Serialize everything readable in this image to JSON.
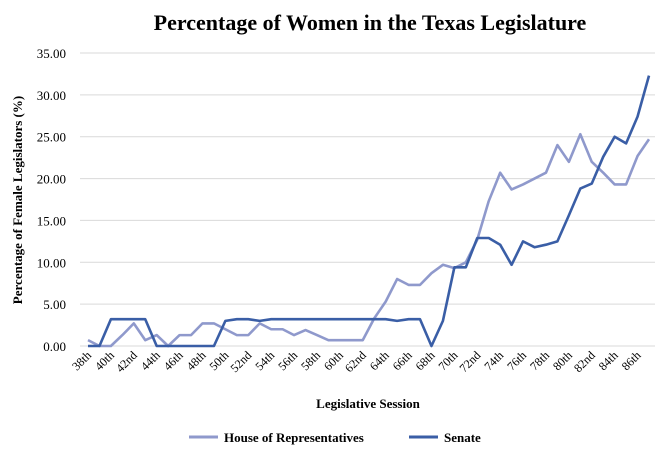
{
  "chart_data": {
    "type": "line",
    "title": "Percentage of Women in the Texas Legislature",
    "xlabel": "Legislative Session",
    "ylabel": "Percentage of Female Legislators (%)",
    "ylim": [
      0,
      35
    ],
    "yticks": [
      "0.00",
      "5.00",
      "10.00",
      "15.00",
      "20.00",
      "25.00",
      "30.00",
      "35.00"
    ],
    "grid": true,
    "legend_position": "bottom",
    "categories": [
      "38th",
      "39th",
      "40th",
      "41st",
      "42nd",
      "43rd",
      "44th",
      "45th",
      "46th",
      "47th",
      "48th",
      "49th",
      "50th",
      "51st",
      "52nd",
      "53rd",
      "54th",
      "55th",
      "56th",
      "57th",
      "58th",
      "59th",
      "60th",
      "61st",
      "62nd",
      "63rd",
      "64th",
      "65th",
      "66th",
      "67th",
      "68th",
      "69th",
      "70th",
      "71st",
      "72nd",
      "73rd",
      "74th",
      "75th",
      "76th",
      "77th",
      "78th",
      "79th",
      "80th",
      "81st",
      "82nd",
      "83rd",
      "84th",
      "85th",
      "86th",
      "87th"
    ],
    "xtick_labels": [
      "38th",
      "40th",
      "42nd",
      "44th",
      "46th",
      "48th",
      "50th",
      "52nd",
      "54th",
      "56th",
      "58th",
      "60th",
      "62nd",
      "64th",
      "66th",
      "68th",
      "70th",
      "72nd",
      "74th",
      "76th",
      "78th",
      "80th",
      "82nd",
      "84th",
      "86th"
    ],
    "series": [
      {
        "name": "House of Representatives",
        "color": "#8f99cc",
        "values": [
          0.7,
          0,
          0,
          1.3,
          2.7,
          0.7,
          1.3,
          0,
          1.3,
          1.3,
          2.7,
          2.7,
          2.0,
          1.3,
          1.3,
          2.7,
          2.0,
          2.0,
          1.3,
          1.9,
          1.3,
          0.7,
          0.7,
          0.7,
          0.7,
          3.3,
          5.3,
          8.0,
          7.3,
          7.3,
          8.7,
          9.7,
          9.3,
          10.0,
          12.7,
          17.3,
          20.7,
          18.7,
          19.3,
          20.0,
          20.7,
          24.0,
          22.0,
          25.3,
          22.0,
          20.7,
          19.3,
          19.3,
          22.7,
          24.7
        ]
      },
      {
        "name": "Senate",
        "color": "#3a5ea6",
        "values": [
          0,
          0,
          3.2,
          3.2,
          3.2,
          3.2,
          0,
          0,
          0,
          0,
          0,
          0,
          3.0,
          3.2,
          3.2,
          3.0,
          3.2,
          3.2,
          3.2,
          3.2,
          3.2,
          3.2,
          3.2,
          3.2,
          3.2,
          3.2,
          3.2,
          3.0,
          3.2,
          3.2,
          0,
          3.0,
          9.4,
          9.4,
          12.9,
          12.9,
          12.1,
          9.7,
          12.5,
          11.8,
          12.1,
          12.5,
          15.6,
          18.8,
          19.4,
          22.6,
          25.0,
          24.2,
          27.4,
          32.3
        ]
      }
    ]
  }
}
